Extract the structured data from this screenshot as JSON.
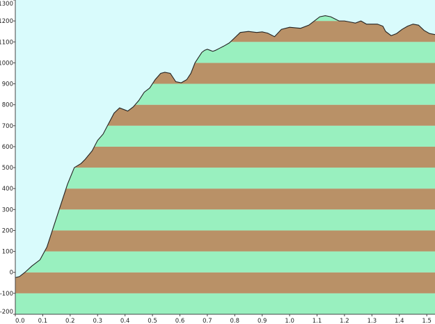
{
  "chart_data": {
    "type": "area",
    "title": "",
    "xlabel": "",
    "ylabel": "",
    "xlim": [
      0,
      1.53
    ],
    "ylim": [
      -200,
      1300
    ],
    "x_ticks": [
      0.0,
      0.1,
      0.2,
      0.3,
      0.4,
      0.5,
      0.6,
      0.7,
      0.8,
      0.9,
      1.0,
      1.1,
      1.2,
      1.3,
      1.4,
      1.5
    ],
    "x_tick_labels": [
      "0.0",
      "0.1",
      "0.2",
      "0.3",
      "0.4",
      "0.5",
      "0.6",
      "0.7",
      "0.8",
      "0.9",
      "1.0",
      "1.1",
      "1.2",
      "1.3",
      "1.4",
      "1.5"
    ],
    "y_ticks": [
      -200,
      -100,
      0,
      100,
      200,
      300,
      400,
      500,
      600,
      700,
      800,
      900,
      1000,
      1100,
      1200,
      1300
    ],
    "y_tick_labels": [
      "-200",
      "-100",
      "0",
      "100",
      "200",
      "300",
      "400",
      "500",
      "600",
      "700",
      "800",
      "900",
      "1000",
      "1100",
      "1200",
      "1300"
    ],
    "grid": false,
    "colors": {
      "background": "#d9fbfc",
      "band_light": "#99f0bf",
      "band_dark": "#b99167",
      "outline": "#222222"
    },
    "band_size": 100,
    "series": [
      {
        "x": [
          0.0,
          0.015,
          0.035,
          0.06,
          0.09,
          0.115,
          0.14,
          0.165,
          0.19,
          0.215,
          0.24,
          0.255,
          0.28,
          0.3,
          0.32,
          0.34,
          0.36,
          0.38,
          0.4,
          0.41,
          0.43,
          0.45,
          0.47,
          0.49,
          0.51,
          0.53,
          0.545,
          0.565,
          0.585,
          0.605,
          0.625,
          0.64,
          0.655,
          0.67,
          0.68,
          0.69,
          0.7,
          0.71,
          0.72,
          0.73,
          0.745,
          0.76,
          0.78,
          0.8,
          0.82,
          0.85,
          0.88,
          0.9,
          0.92,
          0.945,
          0.97,
          1.0,
          1.04,
          1.07,
          1.09,
          1.11,
          1.13,
          1.15,
          1.165,
          1.18,
          1.2,
          1.22,
          1.24,
          1.26,
          1.28,
          1.32,
          1.34,
          1.35,
          1.37,
          1.39,
          1.41,
          1.43,
          1.45,
          1.47,
          1.49,
          1.51,
          1.53
        ],
        "y": [
          -25,
          -20,
          0,
          30,
          60,
          120,
          220,
          320,
          420,
          500,
          520,
          540,
          580,
          630,
          660,
          710,
          760,
          785,
          775,
          770,
          790,
          820,
          860,
          880,
          920,
          950,
          955,
          950,
          910,
          905,
          920,
          950,
          1000,
          1030,
          1050,
          1060,
          1065,
          1060,
          1055,
          1060,
          1070,
          1080,
          1095,
          1120,
          1145,
          1150,
          1145,
          1148,
          1142,
          1125,
          1160,
          1170,
          1165,
          1180,
          1200,
          1220,
          1225,
          1220,
          1210,
          1200,
          1200,
          1195,
          1190,
          1200,
          1185,
          1185,
          1175,
          1150,
          1130,
          1140,
          1160,
          1175,
          1185,
          1180,
          1155,
          1140,
          1135
        ]
      }
    ]
  }
}
